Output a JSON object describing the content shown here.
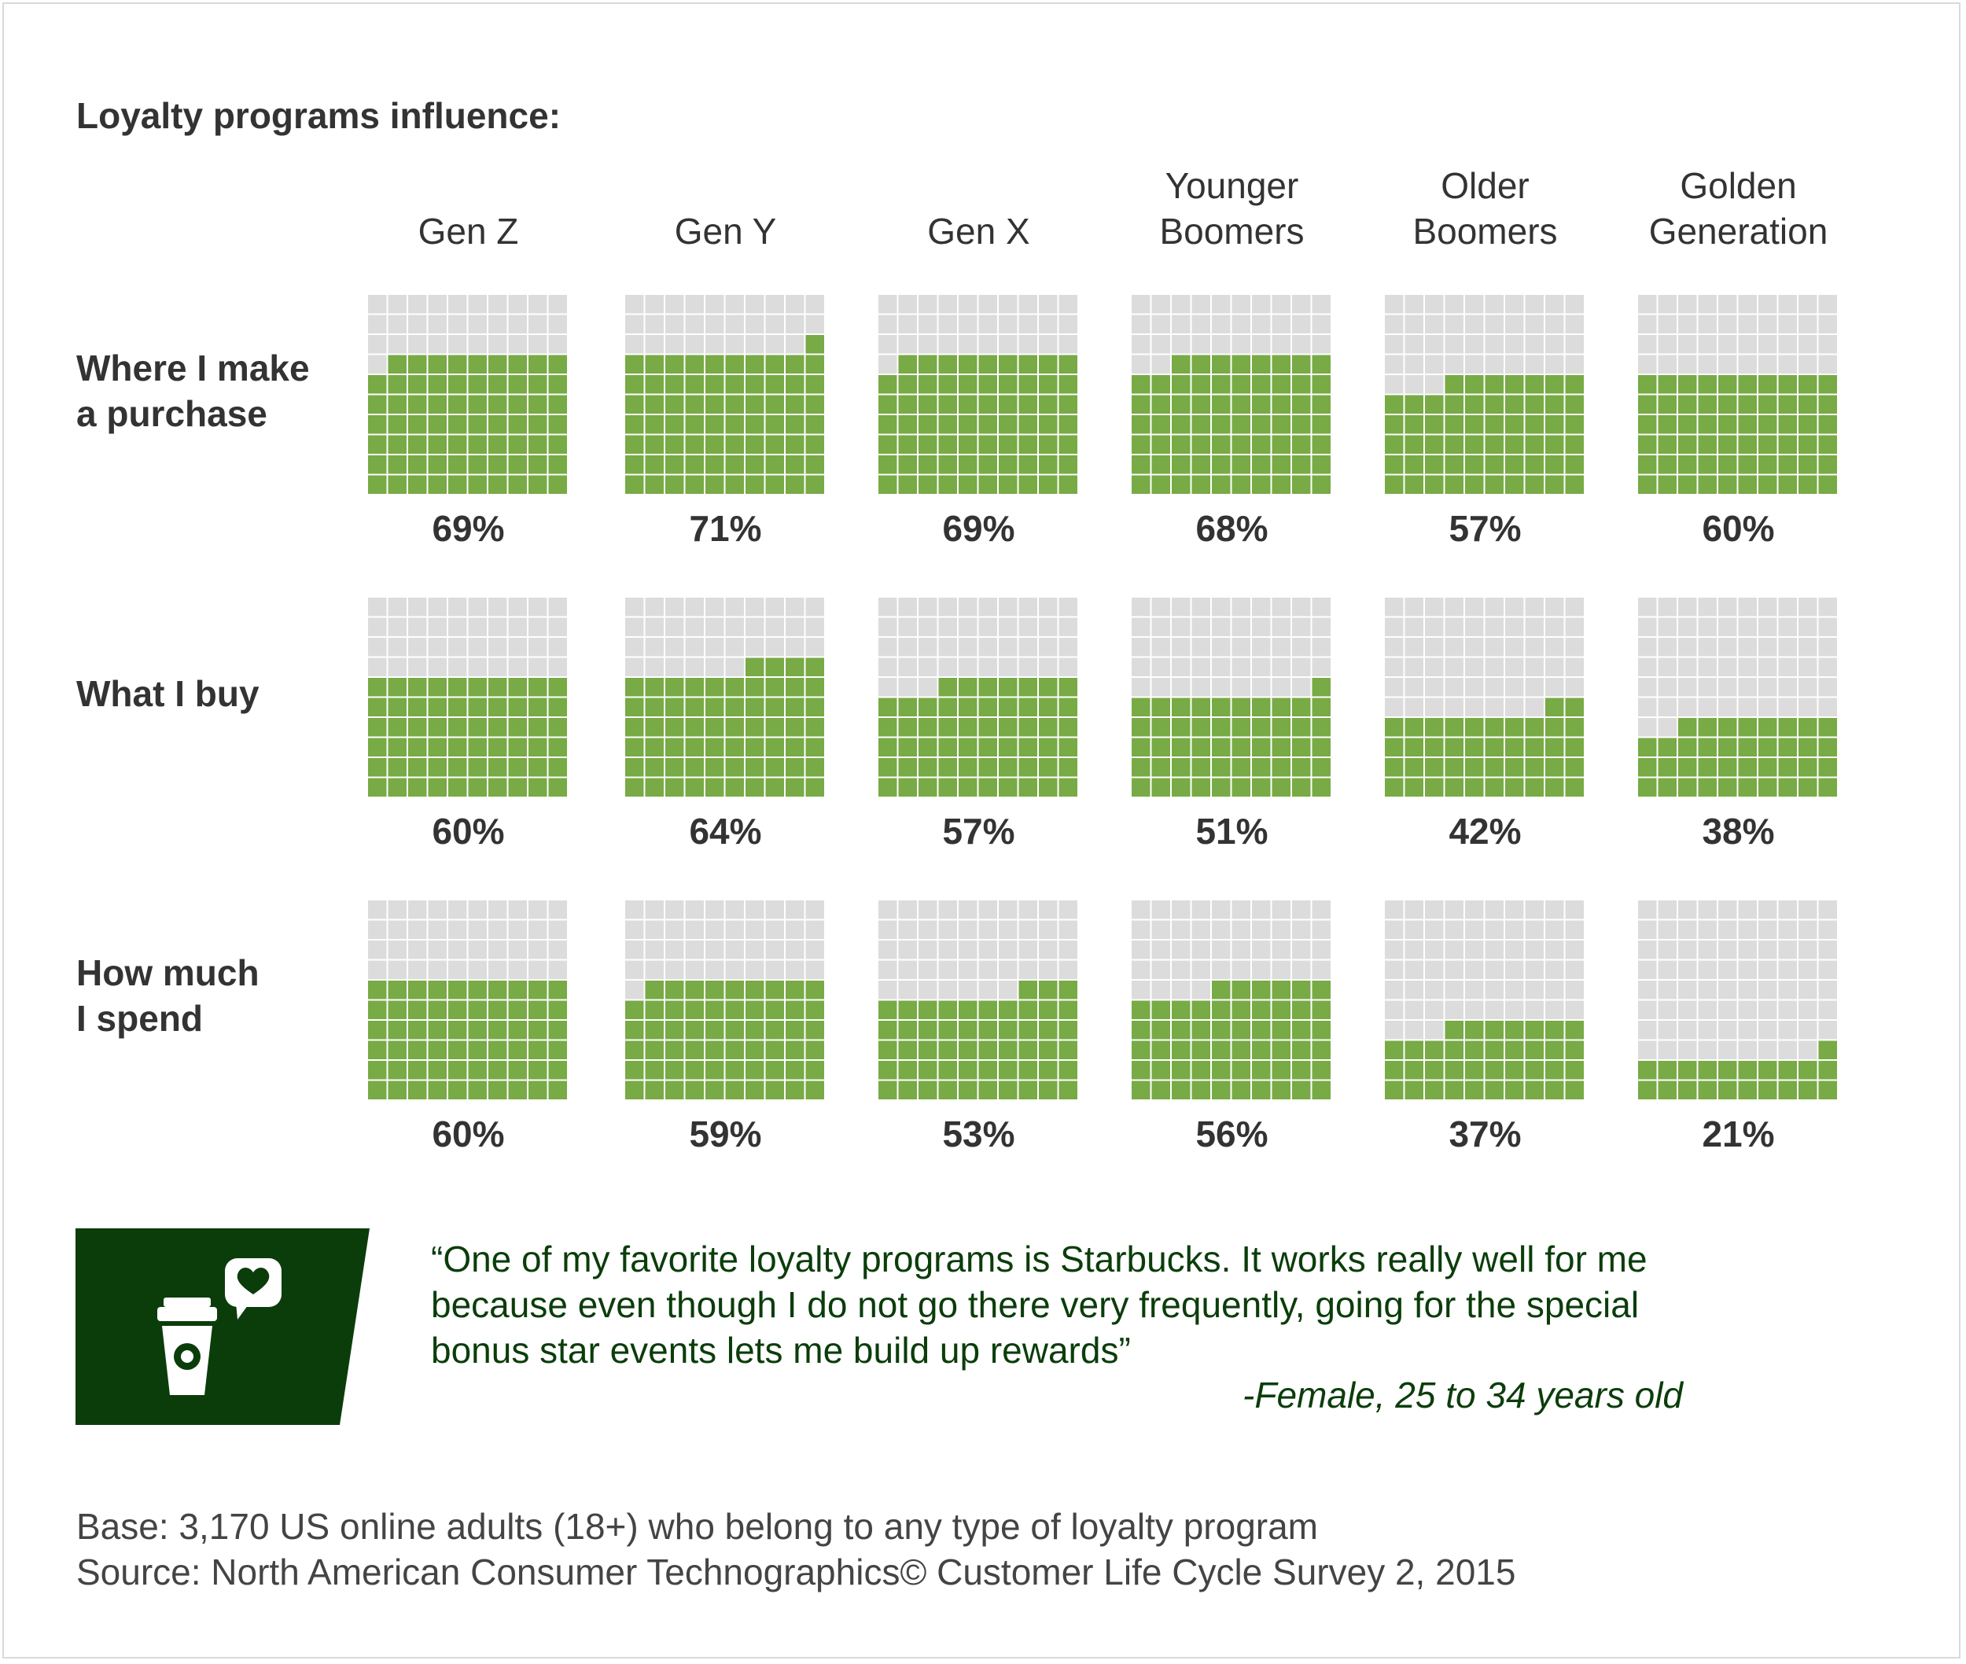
{
  "chart_data": {
    "type": "waffle",
    "title": "Loyalty programs influence:",
    "categories": [
      "Gen Z",
      "Gen Y",
      "Gen X",
      "Younger Boomers",
      "Older Boomers",
      "Golden Generation"
    ],
    "category_lines": [
      [
        "Gen Z"
      ],
      [
        "Gen Y"
      ],
      [
        "Gen X"
      ],
      [
        "Younger",
        "Boomers"
      ],
      [
        "Older",
        "Boomers"
      ],
      [
        "Golden",
        "Generation"
      ]
    ],
    "rows": [
      {
        "name": "Where I make a purchase",
        "lines": [
          "Where I make",
          "a purchase"
        ],
        "values": [
          69,
          71,
          69,
          68,
          57,
          60
        ]
      },
      {
        "name": "What I buy",
        "lines": [
          "What I buy"
        ],
        "values": [
          60,
          64,
          57,
          51,
          42,
          38
        ]
      },
      {
        "name": "How much I spend",
        "lines": [
          "How much",
          "I spend"
        ],
        "values": [
          60,
          59,
          53,
          56,
          37,
          21
        ]
      }
    ],
    "grid": "10x10",
    "unit": "%",
    "colors": {
      "filled": "#78aa45",
      "empty": "#dcdcdc"
    }
  },
  "quote": {
    "lines": [
      "“One of my favorite loyalty programs is Starbucks. It works really well for me",
      "because even though I do not go there very frequently, going for the special",
      "bonus star events lets me build up rewards”"
    ],
    "attribution": "-Female, 25 to 34 years old",
    "icon": "coffee-cup-heart-icon",
    "box_color": "#0b3d0b"
  },
  "notes": {
    "base": "Base: 3,170 US online adults (18+) who belong to any type of loyalty program",
    "source": "Source: North American Consumer Technographics© Customer Life Cycle Survey 2, 2015"
  }
}
